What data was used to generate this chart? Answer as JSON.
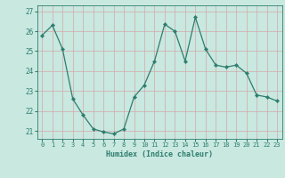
{
  "x": [
    0,
    1,
    2,
    3,
    4,
    5,
    6,
    7,
    8,
    9,
    10,
    11,
    12,
    13,
    14,
    15,
    16,
    17,
    18,
    19,
    20,
    21,
    22,
    23
  ],
  "y": [
    25.8,
    26.3,
    25.1,
    22.6,
    21.8,
    21.1,
    20.95,
    20.85,
    21.1,
    22.7,
    23.3,
    24.5,
    26.35,
    26.0,
    24.5,
    26.7,
    25.1,
    24.3,
    24.2,
    24.3,
    23.9,
    22.8,
    22.7,
    22.5
  ],
  "xlabel": "Humidex (Indice chaleur)",
  "xlim": [
    -0.5,
    23.5
  ],
  "ylim": [
    20.6,
    27.3
  ],
  "yticks": [
    21,
    22,
    23,
    24,
    25,
    26,
    27
  ],
  "xticks": [
    0,
    1,
    2,
    3,
    4,
    5,
    6,
    7,
    8,
    9,
    10,
    11,
    12,
    13,
    14,
    15,
    16,
    17,
    18,
    19,
    20,
    21,
    22,
    23
  ],
  "line_color": "#2e7d6e",
  "marker_color": "#2e7d6e",
  "bg_color": "#c8e8e0",
  "grid_color_h": "#d4a8a8",
  "grid_color_v": "#c8b8b8",
  "font_color": "#2e7d6e",
  "spine_color": "#2e7d6e"
}
